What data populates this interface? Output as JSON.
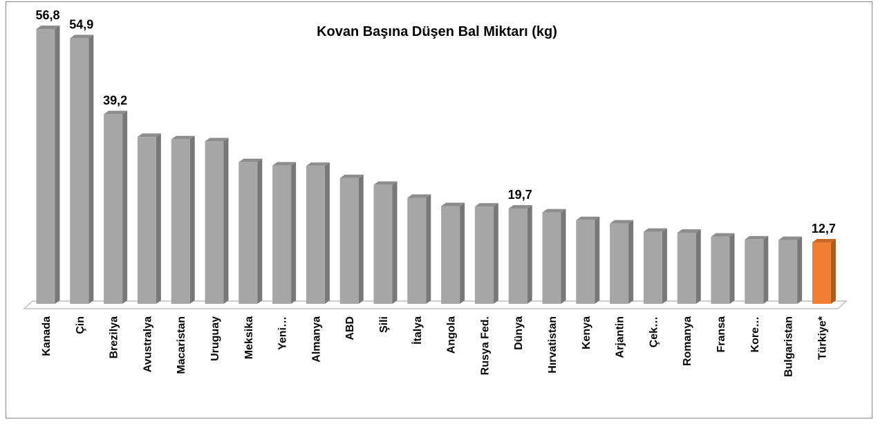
{
  "chart_data": {
    "type": "bar3d",
    "title": "Kovan Başına Düşen Bal Miktarı (kg)",
    "categories": [
      "Kanada",
      "Çin",
      "Brezilya",
      "Avustralya",
      "Macaristan",
      "Uruguay",
      "Meksika",
      "Yeni…",
      "Almanya",
      "ABD",
      "Şili",
      "İtalya",
      "Angola",
      "Rusya Fed.",
      "Dünya",
      "Hırvatistan",
      "Kenya",
      "Arjantin",
      "Çek…",
      "Romanya",
      "Fransa",
      "Kore…",
      "Bulgaristan",
      "Türkiye*"
    ],
    "values": [
      56.8,
      54.9,
      39.2,
      34.5,
      34.0,
      33.6,
      29.3,
      28.6,
      28.5,
      26.0,
      24.6,
      21.9,
      20.2,
      20.1,
      19.7,
      18.9,
      17.3,
      16.6,
      14.9,
      14.7,
      13.9,
      13.3,
      13.2,
      12.7
    ],
    "value_labels": [
      "56,8",
      "54,9",
      "39,2",
      null,
      null,
      null,
      null,
      null,
      null,
      null,
      null,
      null,
      null,
      null,
      "19,7",
      null,
      null,
      null,
      null,
      null,
      null,
      null,
      null,
      "12,7"
    ],
    "colors": [
      "#a6a6a6",
      "#a6a6a6",
      "#a6a6a6",
      "#a6a6a6",
      "#a6a6a6",
      "#a6a6a6",
      "#a6a6a6",
      "#a6a6a6",
      "#a6a6a6",
      "#a6a6a6",
      "#a6a6a6",
      "#a6a6a6",
      "#a6a6a6",
      "#a6a6a6",
      "#a6a6a6",
      "#a6a6a6",
      "#a6a6a6",
      "#a6a6a6",
      "#a6a6a6",
      "#a6a6a6",
      "#a6a6a6",
      "#a6a6a6",
      "#a6a6a6",
      "#ed7d31"
    ]
  }
}
